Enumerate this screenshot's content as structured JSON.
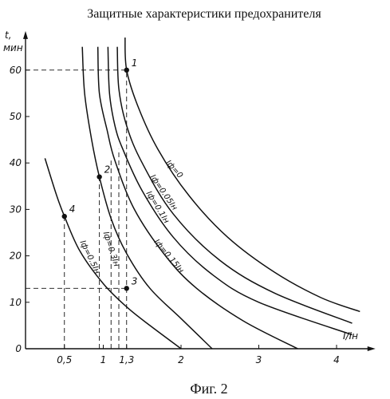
{
  "title": "Защитные характеристики предохранителя",
  "caption": "Фиг. 2",
  "chart_data": {
    "type": "line",
    "xlabel": "I/Iн",
    "ylabel_top": "t,",
    "ylabel_unit": "мин",
    "xlim": [
      0,
      4.5
    ],
    "ylim": [
      0,
      66
    ],
    "x_ticks": [
      {
        "value": 0.5,
        "label": "0,5"
      },
      {
        "value": 1,
        "label": "1"
      },
      {
        "value": 1.3,
        "label": "1,3"
      },
      {
        "value": 2,
        "label": "2"
      },
      {
        "value": 3,
        "label": "3"
      },
      {
        "value": 4,
        "label": "4"
      }
    ],
    "y_ticks": [
      {
        "value": 0,
        "label": "0"
      },
      {
        "value": 10,
        "label": "10"
      },
      {
        "value": 20,
        "label": "20"
      },
      {
        "value": 30,
        "label": "30"
      },
      {
        "value": 40,
        "label": "40"
      },
      {
        "value": 50,
        "label": "50"
      },
      {
        "value": 60,
        "label": "60"
      }
    ],
    "series": [
      {
        "name": "Iф=0.5Iн",
        "points": [
          [
            0.25,
            41
          ],
          [
            0.4,
            33
          ],
          [
            0.5,
            28.5
          ],
          [
            0.7,
            21
          ],
          [
            1.0,
            14
          ],
          [
            1.3,
            9
          ],
          [
            1.6,
            5
          ],
          [
            2.0,
            0
          ]
        ]
      },
      {
        "name": "Iф=0.3Iн",
        "points": [
          [
            0.73,
            65
          ],
          [
            0.76,
            55
          ],
          [
            0.85,
            45
          ],
          [
            0.95,
            37
          ],
          [
            1.1,
            28
          ],
          [
            1.3,
            20.5
          ],
          [
            1.6,
            13
          ],
          [
            2.0,
            6.5
          ],
          [
            2.4,
            0
          ]
        ]
      },
      {
        "name": "Iф=0.15Iн",
        "points": [
          [
            0.93,
            65
          ],
          [
            0.95,
            55
          ],
          [
            1.05,
            47
          ],
          [
            1.15,
            40.5
          ],
          [
            1.4,
            30
          ],
          [
            1.8,
            20
          ],
          [
            2.2,
            13
          ],
          [
            2.8,
            6
          ],
          [
            3.5,
            0
          ]
        ]
      },
      {
        "name": "Iф=0.1Iн",
        "points": [
          [
            1.06,
            65
          ],
          [
            1.08,
            55
          ],
          [
            1.15,
            48
          ],
          [
            1.25,
            43
          ],
          [
            1.5,
            34
          ],
          [
            1.9,
            24
          ],
          [
            2.4,
            16
          ],
          [
            3.0,
            10
          ],
          [
            4.2,
            3
          ]
        ]
      },
      {
        "name": "Iф=0.05Iн",
        "points": [
          [
            1.18,
            65
          ],
          [
            1.2,
            56
          ],
          [
            1.3,
            48
          ],
          [
            1.5,
            40
          ],
          [
            1.9,
            29
          ],
          [
            2.5,
            19
          ],
          [
            3.2,
            12
          ],
          [
            4.2,
            5.5
          ]
        ]
      },
      {
        "name": "Iф=0",
        "points": [
          [
            1.28,
            67
          ],
          [
            1.3,
            60
          ],
          [
            1.45,
            52
          ],
          [
            1.7,
            43
          ],
          [
            2.1,
            33
          ],
          [
            2.6,
            24
          ],
          [
            3.2,
            16.5
          ],
          [
            3.8,
            11
          ],
          [
            4.3,
            8
          ]
        ]
      }
    ],
    "curve_labels": [
      {
        "series": "Iф=0.5Iн",
        "text": "Iф=0.5Iн",
        "x": 0.7,
        "y": 23,
        "angle": 64
      },
      {
        "series": "Iф=0.3Iн",
        "text": "Iф=0.3Iн",
        "x": 1.0,
        "y": 25,
        "angle": 72
      },
      {
        "series": "Iф=0.15Iн",
        "text": "Iф=0.15Iн",
        "x": 1.65,
        "y": 23,
        "angle": 50
      },
      {
        "series": "Iф=0.1Iн",
        "text": "Iф=0.1Iн",
        "x": 1.55,
        "y": 33.5,
        "angle": 58
      },
      {
        "series": "Iф=0.05Iн",
        "text": "Iф=0.05Iн",
        "x": 1.6,
        "y": 37,
        "angle": 55
      },
      {
        "series": "Iф=0",
        "text": "Iф=0",
        "x": 1.8,
        "y": 40,
        "angle": 48
      }
    ],
    "points": [
      {
        "label": "1",
        "x": 1.3,
        "y": 60
      },
      {
        "label": "2",
        "x": 0.95,
        "y": 37
      },
      {
        "label": "3",
        "x": 1.3,
        "y": 13
      },
      {
        "label": "4",
        "x": 0.5,
        "y": 28.5
      }
    ],
    "guides": {
      "vertical_x": [
        0.5,
        0.95,
        1.1,
        1.2,
        1.3
      ],
      "horizontal_y": [
        60,
        13
      ]
    },
    "grid": false
  }
}
